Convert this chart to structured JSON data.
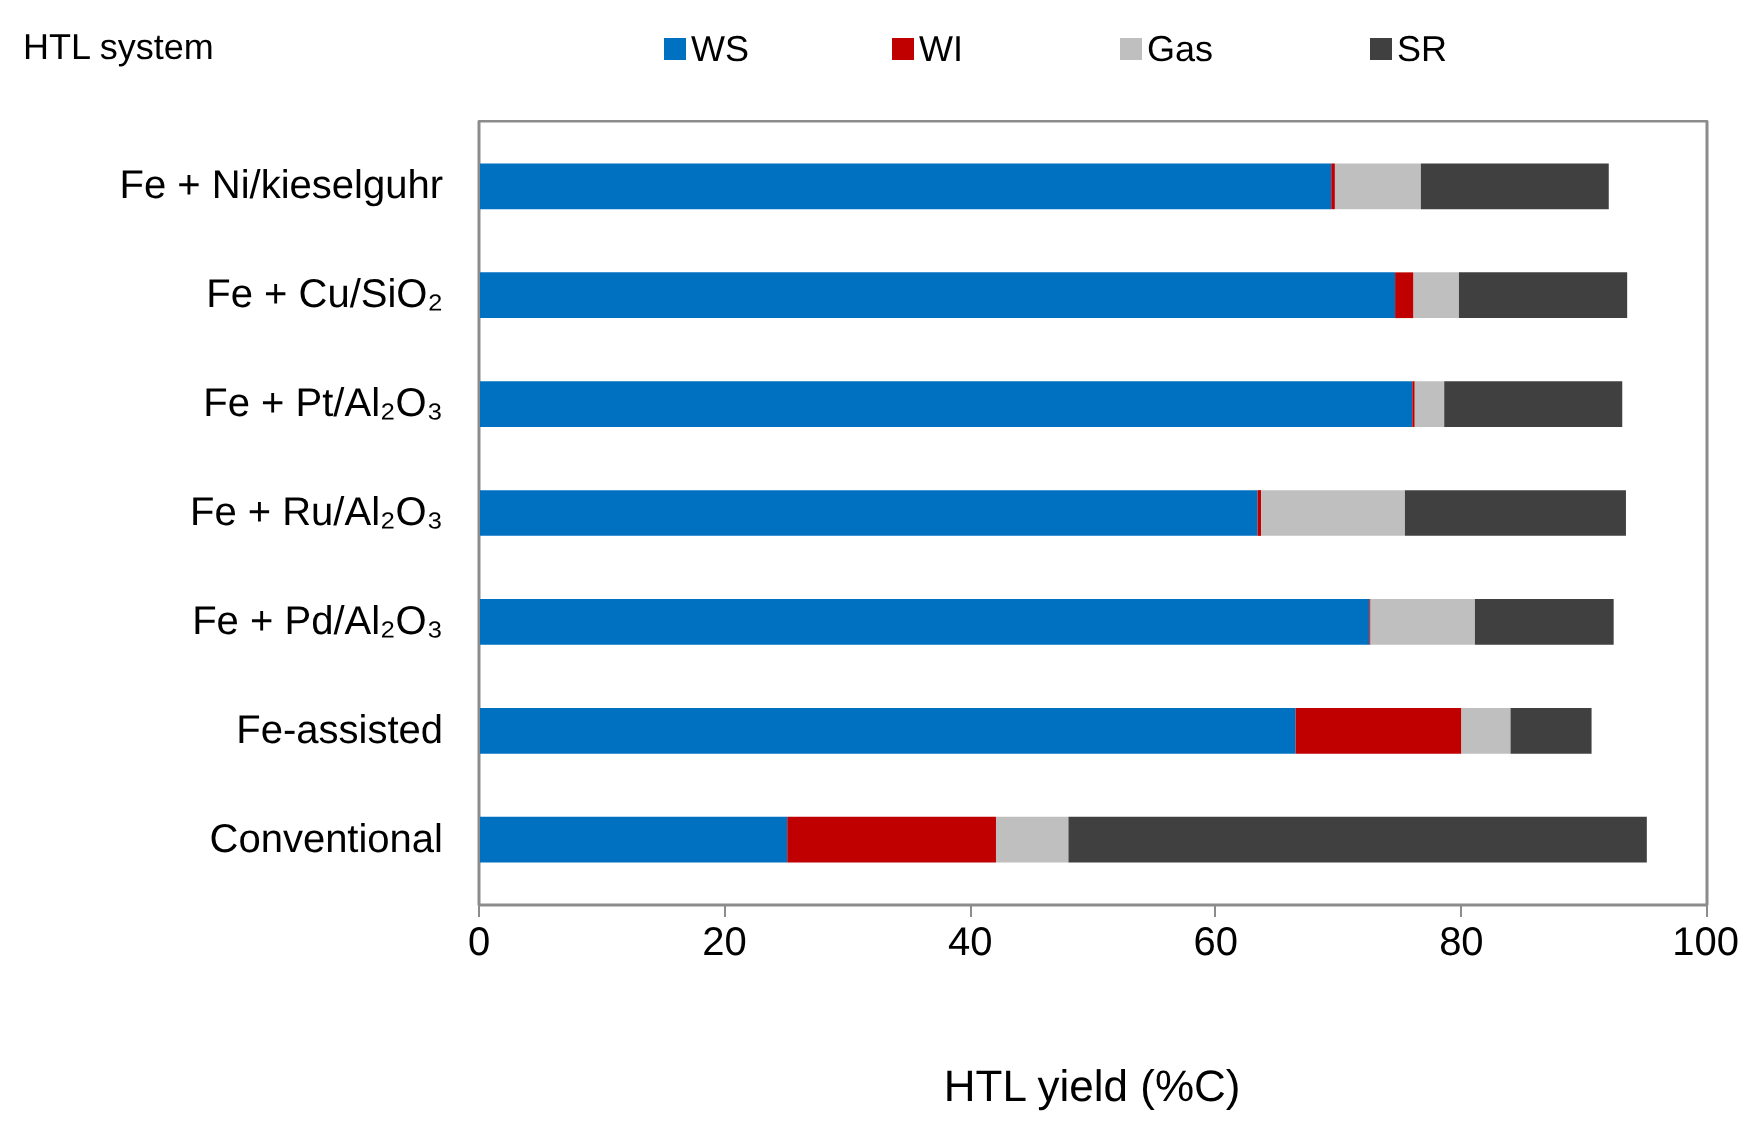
{
  "chart_data": {
    "type": "bar",
    "orientation": "horizontal",
    "stacked": true,
    "categories": [
      "Fe + Ni/kieselguhr",
      "Fe + Cu/SiO₂",
      "Fe + Pt/Al₂O₃",
      "Fe + Ru/Al₂O₃",
      "Fe + Pd/Al₂O₃",
      "Fe-assisted",
      "Conventional"
    ],
    "series": [
      {
        "name": "WS",
        "color": "#0070c0",
        "values": [
          69.4,
          74.6,
          76.0,
          63.4,
          72.5,
          66.5,
          25.1
        ]
      },
      {
        "name": "WI",
        "color": "#c00000",
        "values": [
          0.3,
          1.5,
          0.2,
          0.3,
          0.1,
          13.5,
          17.0
        ]
      },
      {
        "name": "Gas",
        "color": "#bfbfbf",
        "values": [
          7.0,
          3.7,
          2.4,
          11.7,
          8.5,
          4.0,
          5.9
        ]
      },
      {
        "name": "SR",
        "color": "#404040",
        "values": [
          15.3,
          13.7,
          14.5,
          18.0,
          11.3,
          6.6,
          47.1
        ]
      }
    ],
    "xlim": [
      0,
      100
    ],
    "xticks": [
      0,
      20,
      40,
      60,
      80,
      100
    ],
    "xlabel": "HTL yield (%C)",
    "ylabel": "HTL system",
    "legend": "top",
    "grid": false
  }
}
